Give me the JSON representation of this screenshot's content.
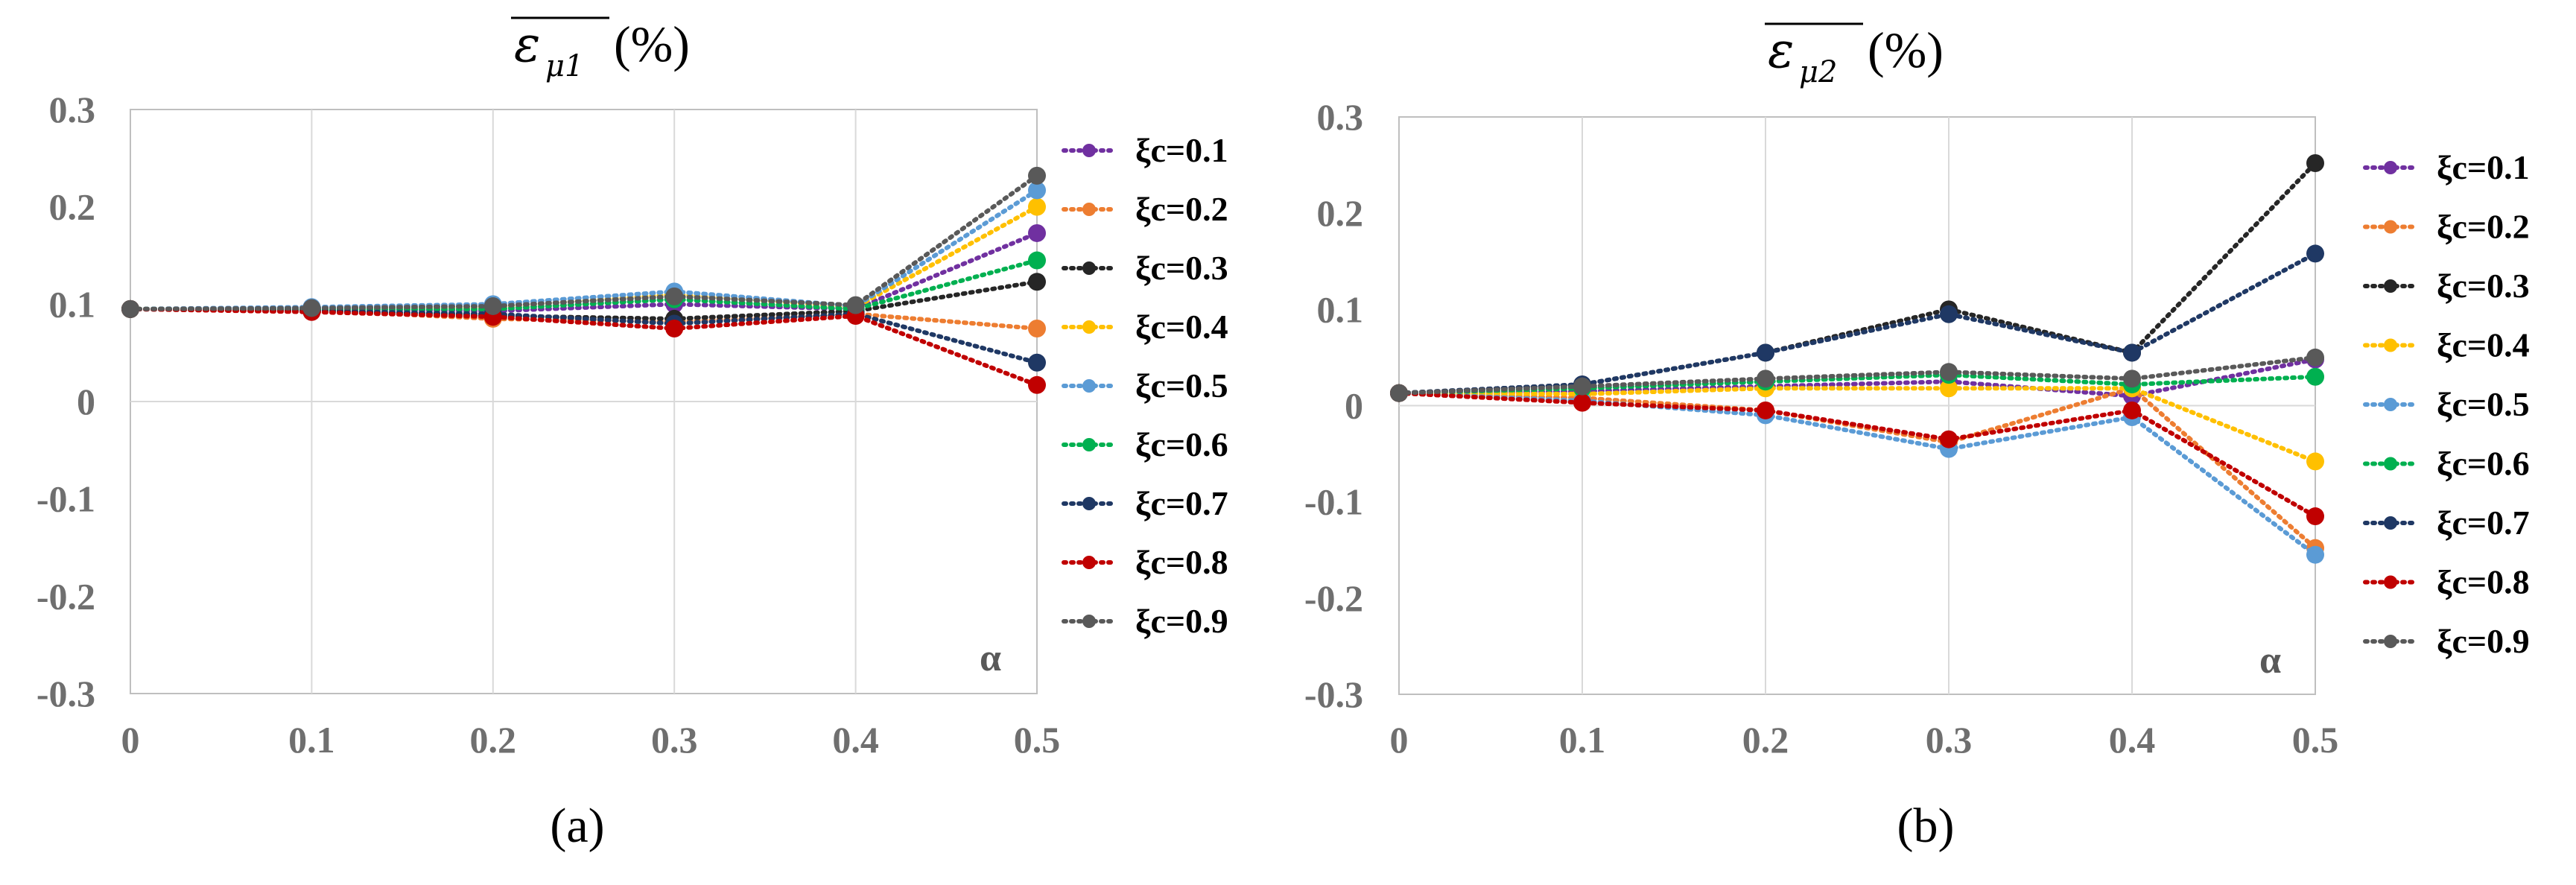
{
  "colors": {
    "xi_0.1": "#7030a0",
    "xi_0.2": "#ed7d31",
    "xi_0.3": "#262626",
    "xi_0.4": "#ffc000",
    "xi_0.5": "#5b9bd5",
    "xi_0.6": "#00b050",
    "xi_0.7": "#1f3864",
    "xi_0.8": "#c00000",
    "xi_0.9": "#595959"
  },
  "chart_data": [
    {
      "type": "line",
      "title": "ε̄μ1(%)",
      "title_symbol": "ε",
      "title_subscript": "μ1",
      "title_suffix": "(%)",
      "caption": "(a)",
      "xlabel": "α",
      "x": [
        0,
        0.1,
        0.2,
        0.3,
        0.4,
        0.5
      ],
      "x_tick_labels": [
        "0",
        "0.1",
        "0.2",
        "0.3",
        "0.4",
        "0.5"
      ],
      "ylim": [
        -0.3,
        0.3
      ],
      "y_tick_labels": [
        "0.3",
        "0.2",
        "0.1",
        "0",
        "-0.1",
        "-0.2",
        "-0.3"
      ],
      "grid": true,
      "legend": "right",
      "series": [
        {
          "name": "ξc=0.1",
          "values": [
            0.095,
            0.095,
            0.093,
            0.1,
            0.095,
            0.173
          ]
        },
        {
          "name": "ξc=0.2",
          "values": [
            0.095,
            0.094,
            0.085,
            0.082,
            0.09,
            0.075
          ]
        },
        {
          "name": "ξc=0.3",
          "values": [
            0.095,
            0.094,
            0.088,
            0.085,
            0.093,
            0.123
          ]
        },
        {
          "name": "ξc=0.4",
          "values": [
            0.095,
            0.096,
            0.097,
            0.11,
            0.097,
            0.2
          ]
        },
        {
          "name": "ξc=0.5",
          "values": [
            0.095,
            0.097,
            0.1,
            0.113,
            0.098,
            0.217
          ]
        },
        {
          "name": "ξc=0.6",
          "values": [
            0.095,
            0.095,
            0.095,
            0.105,
            0.095,
            0.145
          ]
        },
        {
          "name": "ξc=0.7",
          "values": [
            0.095,
            0.093,
            0.09,
            0.08,
            0.09,
            0.04
          ]
        },
        {
          "name": "ξc=0.8",
          "values": [
            0.095,
            0.092,
            0.087,
            0.075,
            0.088,
            0.017
          ]
        },
        {
          "name": "ξc=0.9",
          "values": [
            0.095,
            0.096,
            0.098,
            0.108,
            0.099,
            0.232
          ]
        }
      ]
    },
    {
      "type": "line",
      "title": "ε̄μ2(%)",
      "title_symbol": "ε",
      "title_subscript": "μ2",
      "title_suffix": "(%)",
      "caption": "(b)",
      "xlabel": "α",
      "x": [
        0,
        0.1,
        0.2,
        0.3,
        0.4,
        0.5
      ],
      "x_tick_labels": [
        "0",
        "0.1",
        "0.2",
        "0.3",
        "0.4",
        "0.5"
      ],
      "ylim": [
        -0.3,
        0.3
      ],
      "y_tick_labels": [
        "0.3",
        "0.2",
        "0.1",
        "0",
        "-0.1",
        "-0.2",
        "-0.3"
      ],
      "grid": true,
      "legend": "right",
      "series": [
        {
          "name": "ξc=0.1",
          "values": [
            0.013,
            0.015,
            0.02,
            0.025,
            0.01,
            0.048
          ]
        },
        {
          "name": "ξc=0.2",
          "values": [
            0.013,
            0.008,
            -0.005,
            -0.038,
            0.018,
            -0.148
          ]
        },
        {
          "name": "ξc=0.3",
          "values": [
            0.013,
            0.022,
            0.055,
            0.1,
            0.055,
            0.252
          ]
        },
        {
          "name": "ξc=0.4",
          "values": [
            0.013,
            0.012,
            0.018,
            0.018,
            0.018,
            -0.058
          ]
        },
        {
          "name": "ξc=0.5",
          "values": [
            0.013,
            0.005,
            -0.01,
            -0.045,
            -0.012,
            -0.155
          ]
        },
        {
          "name": "ξc=0.6",
          "values": [
            0.013,
            0.018,
            0.025,
            0.032,
            0.022,
            0.03
          ]
        },
        {
          "name": "ξc=0.7",
          "values": [
            0.013,
            0.022,
            0.055,
            0.095,
            0.055,
            0.158
          ]
        },
        {
          "name": "ξc=0.8",
          "values": [
            0.013,
            0.003,
            -0.005,
            -0.035,
            -0.005,
            -0.115
          ]
        },
        {
          "name": "ξc=0.9",
          "values": [
            0.013,
            0.02,
            0.028,
            0.035,
            0.028,
            0.05
          ]
        }
      ]
    }
  ]
}
